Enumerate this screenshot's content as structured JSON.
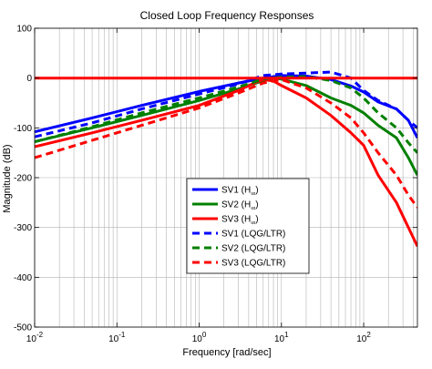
{
  "chart_data": {
    "type": "line",
    "title": "Closed Loop Frequency Responses",
    "xlabel": "Frequency [rad/sec]",
    "ylabel": "Magnitude (dB)",
    "xscale": "log",
    "xlim": [
      0.01,
      450
    ],
    "ylim": [
      -500,
      100
    ],
    "grid": true,
    "legend_position": "center",
    "x_ticks": [
      0.01,
      0.1,
      1,
      10,
      100
    ],
    "x_tick_bases": [
      "10",
      "10",
      "10",
      "10",
      "10"
    ],
    "x_tick_exps": [
      "-2",
      "-1",
      "0",
      "1",
      "2"
    ],
    "y_ticks": [
      -500,
      -400,
      -300,
      -200,
      -100,
      0,
      100
    ],
    "y_tick_labels": [
      "-500",
      "-400",
      "-300",
      "-200",
      "-100",
      "0",
      "100"
    ],
    "series": [
      {
        "name": "SV1 (H∞)",
        "legend_main": "SV1 (H",
        "legend_sub": "∞",
        "legend_tail": ")",
        "color": "#0000ff",
        "dash": "solid",
        "x": [
          0.01,
          0.05,
          0.2,
          1,
          3,
          6,
          10,
          20,
          40,
          70,
          100,
          150,
          250,
          350,
          450
        ],
        "y": [
          -108,
          -80,
          -55,
          -27,
          -10,
          0,
          5,
          4,
          -3,
          -16,
          -28,
          -48,
          -62,
          -85,
          -120
        ]
      },
      {
        "name": "SV2 (H∞)",
        "legend_main": "SV2 (H",
        "legend_sub": "∞",
        "legend_tail": ")",
        "color": "#008000",
        "dash": "solid",
        "x": [
          0.01,
          0.05,
          0.2,
          1,
          3,
          6,
          8,
          10,
          20,
          40,
          70,
          100,
          150,
          250,
          350,
          450
        ],
        "y": [
          -128,
          -100,
          -75,
          -45,
          -22,
          -5,
          0,
          -2,
          -15,
          -40,
          -55,
          -70,
          -95,
          -120,
          -160,
          -195
        ]
      },
      {
        "name": "SV3 (H∞)",
        "legend_main": "SV3 (H",
        "legend_sub": "∞",
        "legend_tail": ")",
        "color": "#ff0000",
        "dash": "solid",
        "x": [
          0.01,
          0.05,
          0.2,
          1,
          3,
          5,
          6,
          8,
          10,
          20,
          40,
          70,
          100,
          150,
          250,
          350,
          450
        ],
        "y": [
          -138,
          -110,
          -85,
          -55,
          -25,
          -8,
          -3,
          -6,
          -15,
          -40,
          -75,
          -110,
          -135,
          -195,
          -250,
          -300,
          -338
        ]
      },
      {
        "name": "SV1 (LQG/LTR)",
        "legend_main": "SV1 (LQG/LTR)",
        "legend_sub": "",
        "legend_tail": "",
        "color": "#0000ff",
        "dash": "dashed",
        "x": [
          0.01,
          0.05,
          0.2,
          1,
          3,
          6,
          10,
          20,
          40,
          70,
          100,
          150,
          250,
          350,
          450
        ],
        "y": [
          -118,
          -90,
          -62,
          -32,
          -12,
          5,
          8,
          10,
          12,
          0,
          -25,
          -45,
          -62,
          -85,
          -100
        ]
      },
      {
        "name": "SV2 (LQG/LTR)",
        "legend_main": "SV2 (LQG/LTR)",
        "legend_sub": "",
        "legend_tail": "",
        "color": "#008000",
        "dash": "dashed",
        "x": [
          0.01,
          0.05,
          0.2,
          1,
          3,
          6,
          10,
          20,
          40,
          70,
          100,
          150,
          250,
          350,
          450
        ],
        "y": [
          -128,
          -98,
          -70,
          -40,
          -18,
          -2,
          2,
          3,
          -5,
          -20,
          -40,
          -70,
          -100,
          -130,
          -150
        ]
      },
      {
        "name": "SV3 (LQG/LTR)",
        "legend_main": "SV3 (LQG/LTR)",
        "legend_sub": "",
        "legend_tail": "",
        "color": "#ff0000",
        "dash": "dashed",
        "x": [
          0.01,
          0.05,
          0.2,
          1,
          3,
          6,
          10,
          20,
          40,
          70,
          100,
          150,
          250,
          350,
          450
        ],
        "y": [
          -160,
          -125,
          -95,
          -60,
          -30,
          -10,
          -3,
          -20,
          -50,
          -80,
          -110,
          -150,
          -195,
          -235,
          -260
        ]
      },
      {
        "name": "",
        "legend_main": "",
        "legend_sub": "",
        "legend_tail": "",
        "color": "#ff0000",
        "dash": "solid",
        "x": [
          0.01,
          450
        ],
        "y": [
          0,
          0
        ]
      }
    ]
  }
}
